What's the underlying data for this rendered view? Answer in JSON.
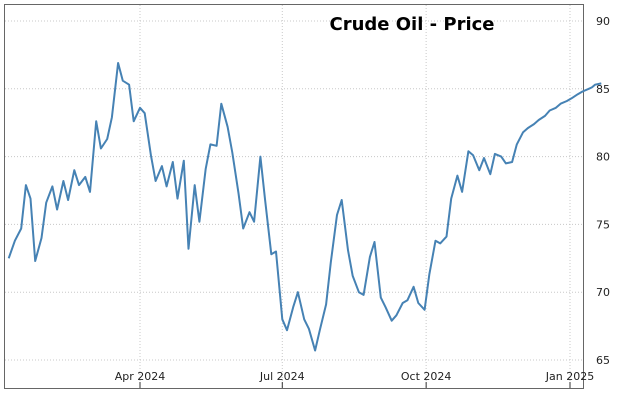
{
  "chart_data": {
    "type": "line",
    "title": "Crude Oil - Price",
    "xlabel": "",
    "ylabel": "",
    "ylim": [
      65,
      90
    ],
    "y_ticks": [
      65,
      70,
      75,
      80,
      85,
      90
    ],
    "x_ticks": [
      {
        "label": "Apr 2024",
        "x": "2024-04-01"
      },
      {
        "label": "Jul 2024",
        "x": "2024-07-01"
      },
      {
        "label": "Oct 2024",
        "x": "2024-10-01"
      },
      {
        "label": "Jan 2025",
        "x": "2025-01-01"
      }
    ],
    "xlim": [
      "2024-01-08",
      "2025-01-21"
    ],
    "grid": true,
    "colors": {
      "line": "#4682b4",
      "grid": "#c8c8c8",
      "frame": "#666666"
    },
    "series": [
      {
        "x": [
          "2024-01-08",
          "2024-01-12",
          "2024-01-16",
          "2024-01-19",
          "2024-01-22",
          "2024-01-25",
          "2024-01-29",
          "2024-02-01",
          "2024-02-05",
          "2024-02-08",
          "2024-02-12",
          "2024-02-15",
          "2024-02-19",
          "2024-02-22",
          "2024-02-26",
          "2024-02-29",
          "2024-03-04",
          "2024-03-07",
          "2024-03-11",
          "2024-03-14",
          "2024-03-18",
          "2024-03-21",
          "2024-03-25",
          "2024-03-28",
          "2024-04-01",
          "2024-04-04",
          "2024-04-08",
          "2024-04-11",
          "2024-04-15",
          "2024-04-18",
          "2024-04-22",
          "2024-04-25",
          "2024-04-29",
          "2024-05-02",
          "2024-05-06",
          "2024-05-09",
          "2024-05-13",
          "2024-05-16",
          "2024-05-20",
          "2024-05-23",
          "2024-05-27",
          "2024-05-30",
          "2024-06-03",
          "2024-06-06",
          "2024-06-10",
          "2024-06-13",
          "2024-06-17",
          "2024-06-20",
          "2024-06-24",
          "2024-06-27",
          "2024-07-01",
          "2024-07-04",
          "2024-07-08",
          "2024-07-11",
          "2024-07-15",
          "2024-07-18",
          "2024-07-22",
          "2024-07-25",
          "2024-07-29",
          "2024-08-01",
          "2024-08-05",
          "2024-08-08",
          "2024-08-12",
          "2024-08-15",
          "2024-08-19",
          "2024-08-22",
          "2024-08-26",
          "2024-08-29",
          "2024-09-02",
          "2024-09-05",
          "2024-09-09",
          "2024-09-12",
          "2024-09-16",
          "2024-09-19",
          "2024-09-23",
          "2024-09-26",
          "2024-09-30",
          "2024-10-03",
          "2024-10-07",
          "2024-10-10",
          "2024-10-14",
          "2024-10-17",
          "2024-10-21",
          "2024-10-24",
          "2024-10-28",
          "2024-10-31",
          "2024-11-04",
          "2024-11-07",
          "2024-11-11",
          "2024-11-14",
          "2024-11-18",
          "2024-11-21",
          "2024-11-25",
          "2024-11-28",
          "2024-12-02",
          "2024-12-05",
          "2024-12-09",
          "2024-12-12",
          "2024-12-16",
          "2024-12-19",
          "2024-12-23",
          "2024-12-26",
          "2024-12-30",
          "2025-01-02",
          "2025-01-06",
          "2025-01-09",
          "2025-01-13",
          "2025-01-15",
          "2025-01-17",
          "2025-01-21"
        ],
        "y": [
          72.5,
          73.8,
          74.7,
          77.9,
          76.9,
          72.3,
          74.0,
          76.6,
          77.8,
          76.1,
          78.2,
          76.8,
          79.0,
          77.9,
          78.5,
          77.4,
          82.6,
          80.6,
          81.3,
          82.9,
          86.9,
          85.6,
          85.3,
          82.6,
          83.6,
          83.2,
          80.1,
          78.2,
          79.3,
          77.8,
          79.6,
          76.9,
          79.7,
          73.2,
          77.9,
          75.2,
          79.1,
          80.9,
          80.8,
          83.9,
          82.2,
          80.3,
          77.3,
          74.7,
          75.9,
          75.2,
          80.0,
          76.8,
          72.8,
          73.0,
          68.0,
          67.2,
          68.9,
          70.0,
          68.0,
          67.3,
          65.7,
          67.2,
          69.1,
          72.2,
          75.7,
          76.8,
          73.1,
          71.2,
          70.0,
          69.8,
          72.6,
          73.7,
          69.6,
          68.9,
          67.9,
          68.3,
          69.2,
          69.4,
          70.4,
          69.2,
          68.7,
          71.3,
          73.8,
          73.6,
          74.1,
          76.9,
          78.6,
          77.4,
          80.4,
          80.1,
          79.0,
          79.9,
          78.7,
          80.2,
          80.0,
          79.5,
          79.6,
          80.9,
          81.8,
          82.1,
          82.4,
          82.7,
          83.0,
          83.4,
          83.6,
          83.9,
          84.1,
          84.3,
          84.6,
          84.8,
          85.0,
          85.1,
          85.3,
          85.4
        ]
      }
    ]
  }
}
